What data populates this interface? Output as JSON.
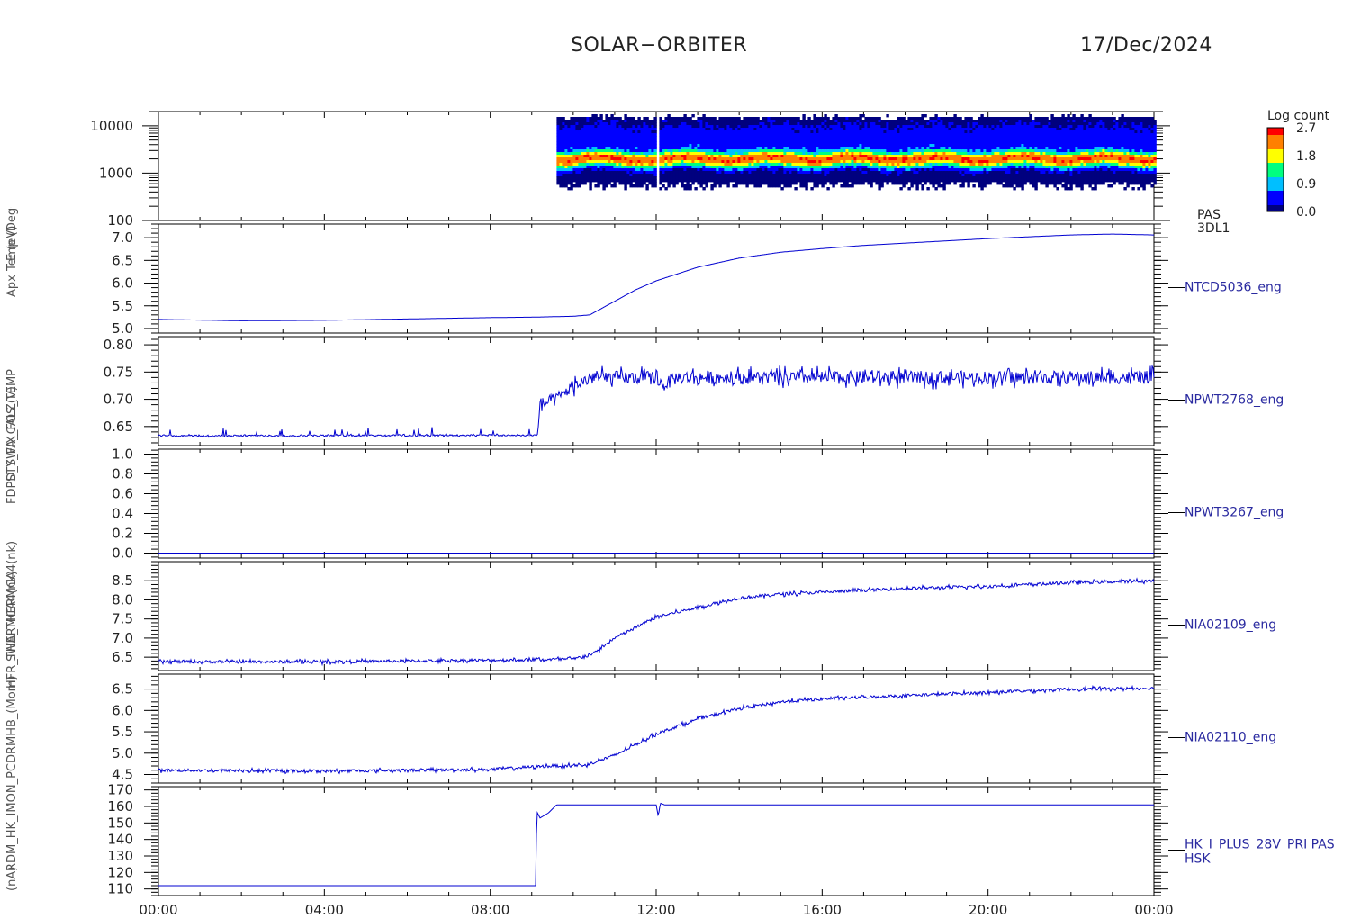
{
  "header": {
    "title": "SOLAR−ORBITER",
    "date": "17/Dec/2024"
  },
  "y_axis_labels_overlapped": [
    "(nA)",
    "RDM_HK_IMON_PCDRMHB_(Mom)",
    "HFR_THERMCA4(nk)",
    "SWA_THERMCA4(nk)",
    "FDPD_SWA_CALZ(V)",
    "STY_FIX_FOS_TEMP",
    "Apx Temp (DegC)",
    "E (eV)"
  ],
  "chart_data": [
    {
      "type": "heatmap",
      "panel": 0,
      "ylabel": "E (eV)",
      "yscale": "log",
      "ylim": [
        100,
        20000
      ],
      "yticks": [
        100,
        1000,
        10000
      ],
      "ytick_labels": [
        "100",
        "1000",
        "10000"
      ],
      "right_label": [
        "PAS",
        "3DL1"
      ],
      "colorbar": {
        "title": "Log count",
        "ticks": [
          0.0,
          0.9,
          1.8,
          2.7
        ],
        "tick_labels": [
          "0.0",
          "0.9",
          "1.8",
          "2.7"
        ],
        "range": [
          0.0,
          2.7
        ]
      },
      "data_start_hour": 9.6,
      "data_end_hour": 24.0,
      "peak_energy_eV": 2000,
      "emin_eV": 550,
      "emax_eV": 14000,
      "gap_hour": 12.0,
      "colors": [
        "#00007f",
        "#0000ff",
        "#00bfff",
        "#00ff80",
        "#ffff00",
        "#ff8000",
        "#ff0000"
      ]
    },
    {
      "type": "line",
      "panel": 1,
      "right_label": "NTCD5036_eng",
      "ylim": [
        4.9,
        7.3
      ],
      "yticks": [
        5.0,
        5.5,
        6.0,
        6.5,
        7.0
      ],
      "ytick_labels": [
        "5.0",
        "5.5",
        "6.0",
        "6.5",
        "7.0"
      ],
      "x": [
        0,
        2,
        4,
        6,
        8,
        9,
        10,
        10.4,
        11,
        11.5,
        12,
        13,
        14,
        15,
        16,
        17,
        18,
        19,
        20,
        21,
        22,
        23,
        24
      ],
      "y": [
        5.2,
        5.17,
        5.18,
        5.21,
        5.24,
        5.25,
        5.27,
        5.3,
        5.6,
        5.85,
        6.05,
        6.35,
        6.55,
        6.68,
        6.76,
        6.83,
        6.88,
        6.93,
        6.98,
        7.02,
        7.06,
        7.08,
        7.06
      ],
      "noise": 0.0
    },
    {
      "type": "line",
      "panel": 2,
      "right_label": "NPWT2768_eng",
      "ylim": [
        0.615,
        0.815
      ],
      "yticks": [
        0.65,
        0.7,
        0.75,
        0.8
      ],
      "ytick_labels": [
        "0.65",
        "0.70",
        "0.75",
        "0.80"
      ],
      "x": [
        0,
        9.15,
        9.2,
        9.6,
        10.0,
        10.5,
        12.0,
        12.15,
        12.5,
        24
      ],
      "y": [
        0.633,
        0.634,
        0.69,
        0.7,
        0.725,
        0.74,
        0.74,
        0.725,
        0.74,
        0.74
      ],
      "noise": 0.012,
      "spike_hours_before": 9.15
    },
    {
      "type": "line",
      "panel": 3,
      "right_label": "NPWT3267_eng",
      "ylim": [
        -0.05,
        1.05
      ],
      "yticks": [
        0.0,
        0.2,
        0.4,
        0.6,
        0.8,
        1.0
      ],
      "ytick_labels": [
        "0.0",
        "0.2",
        "0.4",
        "0.6",
        "0.8",
        "1.0"
      ],
      "x": [
        0,
        24
      ],
      "y": [
        0.0,
        0.0
      ],
      "noise": 0.0
    },
    {
      "type": "line",
      "panel": 4,
      "right_label": "NIA02109_eng",
      "ylim": [
        6.15,
        9.0
      ],
      "yticks": [
        6.5,
        7.0,
        7.5,
        8.0,
        8.5
      ],
      "ytick_labels": [
        "6.5",
        "7.0",
        "7.5",
        "8.0",
        "8.5"
      ],
      "x": [
        0,
        4,
        8,
        10,
        10.5,
        11,
        12,
        13,
        14,
        15,
        16,
        18,
        20,
        22,
        24
      ],
      "y": [
        6.38,
        6.38,
        6.42,
        6.45,
        6.6,
        7.0,
        7.55,
        7.8,
        8.05,
        8.15,
        8.2,
        8.3,
        8.35,
        8.45,
        8.5
      ],
      "noise": 0.04
    },
    {
      "type": "line",
      "panel": 5,
      "right_label": "NIA02110_eng",
      "ylim": [
        4.3,
        6.85
      ],
      "yticks": [
        4.5,
        5.0,
        5.5,
        6.0,
        6.5
      ],
      "ytick_labels": [
        "4.5",
        "5.0",
        "5.5",
        "6.0",
        "6.5"
      ],
      "x": [
        0,
        4,
        8,
        9.4,
        10.3,
        11,
        12,
        13,
        14,
        15,
        16,
        18,
        20,
        22,
        24
      ],
      "y": [
        4.6,
        4.58,
        4.62,
        4.7,
        4.72,
        4.95,
        5.45,
        5.8,
        6.05,
        6.2,
        6.27,
        6.35,
        6.42,
        6.5,
        6.52
      ],
      "noise": 0.035
    },
    {
      "type": "line",
      "panel": 6,
      "right_label": [
        "HK_I_PLUS_28V_PRI PAS",
        "HSK"
      ],
      "ylim": [
        106,
        172
      ],
      "yticks": [
        110,
        120,
        130,
        140,
        150,
        160,
        170
      ],
      "ytick_labels": [
        "110",
        "120",
        "130",
        "140",
        "150",
        "160",
        "170"
      ],
      "x": [
        0,
        9.1,
        9.12,
        9.2,
        9.4,
        9.6,
        12.0,
        12.05,
        12.1,
        12.2,
        24
      ],
      "y": [
        112,
        112,
        157,
        153,
        156,
        161,
        161,
        154,
        162,
        161,
        161
      ],
      "noise": 0.0
    }
  ],
  "x_axis": {
    "ticks_hours": [
      0,
      4,
      8,
      12,
      16,
      20,
      24
    ],
    "tick_labels": [
      "00:00",
      "04:00",
      "08:00",
      "12:00",
      "16:00",
      "20:00",
      "00:00"
    ]
  }
}
